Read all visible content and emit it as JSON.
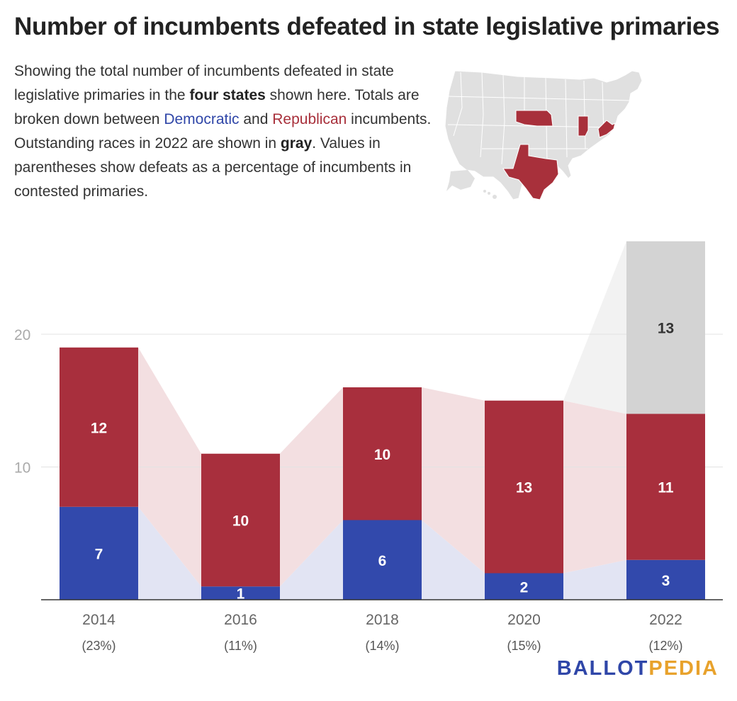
{
  "title": "Number of incumbents defeated in state legislative primaries",
  "description": {
    "p1": "Showing the total number of incumbents defeated in state legislative primaries in the ",
    "b1": "four states",
    "p2": " shown here. Totals are broken down between ",
    "dem": "Democratic",
    "p3": " and ",
    "rep": "Republican",
    "p4": " incumbents. Outstanding races in 2022 are shown in ",
    "gray": "gray",
    "p5": ". Values in parentheses show defeats as a percentage of incumbents in contested primaries."
  },
  "colors": {
    "democratic": "#3249ac",
    "republican": "#a82f3d",
    "outstanding": "#d3d3d3",
    "dem_band": "#e2e4f3",
    "rep_band": "#f3dfe1",
    "gray_band": "#f2f2f2",
    "map_base": "#e0e0e0",
    "map_highlight": "#a8303b"
  },
  "chart_data": {
    "type": "bar",
    "stacked": true,
    "categories": [
      "2014",
      "2016",
      "2018",
      "2020",
      "2022"
    ],
    "sublabels": [
      "(23%)",
      "(11%)",
      "(14%)",
      "(15%)",
      "(12%)"
    ],
    "series": [
      {
        "name": "Democratic",
        "values": [
          7,
          1,
          6,
          2,
          3
        ]
      },
      {
        "name": "Republican",
        "values": [
          12,
          10,
          10,
          13,
          11
        ]
      },
      {
        "name": "Outstanding",
        "values": [
          0,
          0,
          0,
          0,
          13
        ]
      }
    ],
    "yticks": [
      "10",
      "20"
    ],
    "ylim": [
      0,
      27
    ]
  },
  "map": {
    "highlighted_states": [
      "Nebraska",
      "Texas",
      "Indiana",
      "West Virginia"
    ]
  },
  "logo": {
    "part1": "BALLOT",
    "part2": "PEDIA"
  }
}
